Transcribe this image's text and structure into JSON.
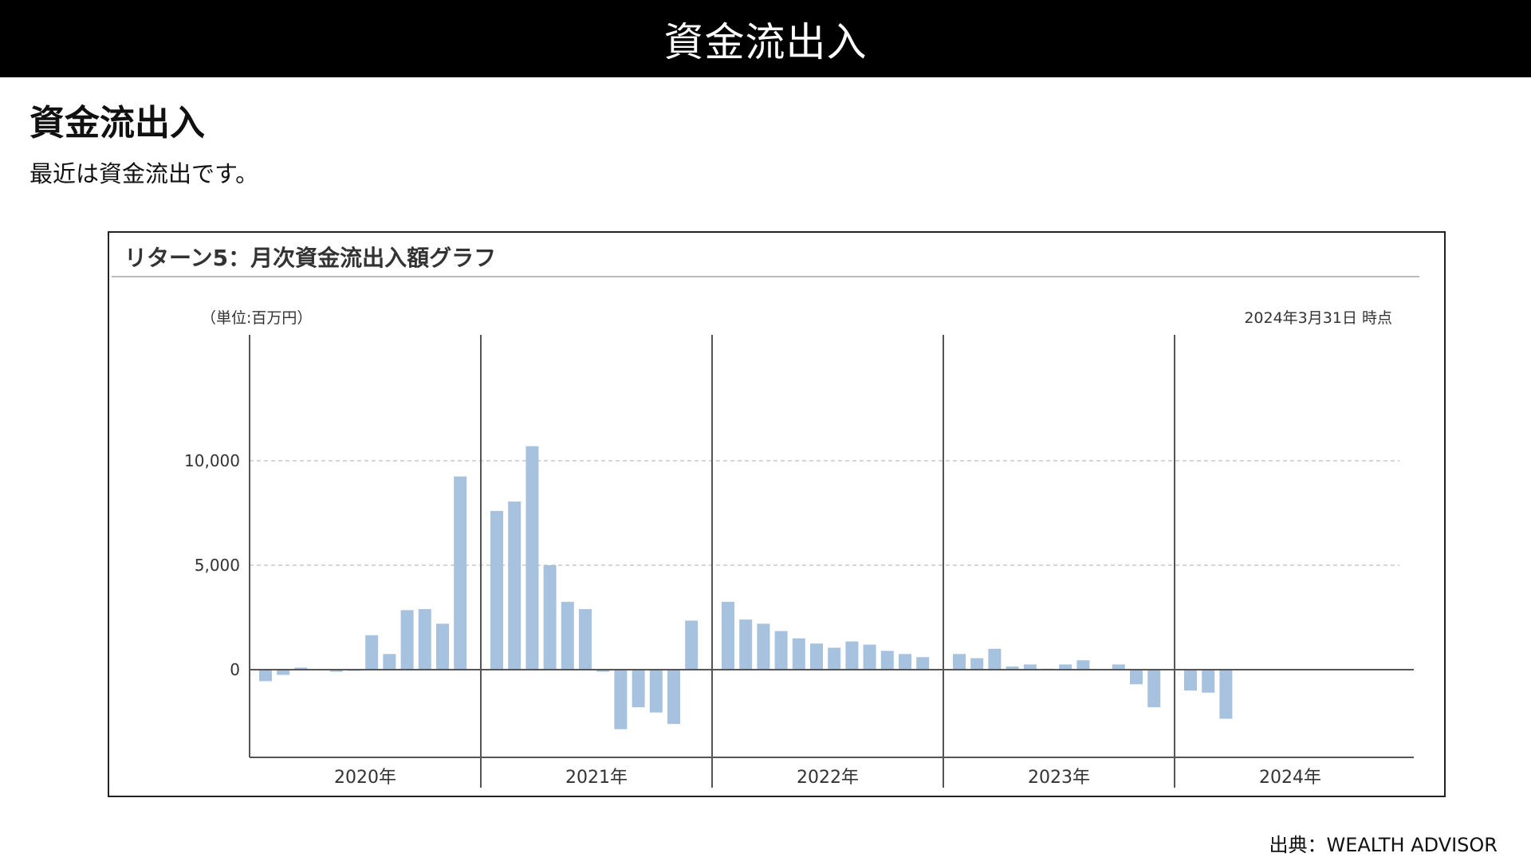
{
  "header": {
    "title": "資金流出入"
  },
  "section": {
    "heading": "資金流出入",
    "description": "最近は資金流出です。"
  },
  "chart_panel": {
    "title": "リターン5：月次資金流出入額グラフ",
    "unit": "（単位:百万円）",
    "as_of": "2024年3月31日 時点"
  },
  "footer": {
    "source": "出典：WEALTH ADVISOR"
  },
  "colors": {
    "bar": "#a7c2de",
    "axis": "#555555",
    "grid": "#c8c8c8",
    "header_bg": "#000000"
  },
  "chart_data": {
    "type": "bar",
    "title": "リターン5：月次資金流出入額グラフ",
    "ylabel": "（単位:百万円）",
    "xlabel": "",
    "ylim": [
      -3100,
      11700
    ],
    "yticks": [
      0,
      5000,
      10000
    ],
    "ytick_labels": [
      "0",
      "5,000",
      "10,000"
    ],
    "grid": true,
    "year_groups": [
      {
        "label": "2020年",
        "values": [
          -550,
          -250,
          100,
          null,
          -100,
          -50,
          1650,
          750,
          2850,
          2900,
          2200,
          9250
        ]
      },
      {
        "label": "2021年",
        "values": [
          7600,
          8050,
          10700,
          5000,
          3250,
          2900,
          -100,
          -2850,
          -1800,
          -2050,
          -2600,
          2350
        ]
      },
      {
        "label": "2022年",
        "values": [
          3250,
          2400,
          2200,
          1850,
          1500,
          1250,
          1050,
          1350,
          1200,
          900,
          750,
          600
        ]
      },
      {
        "label": "2023年",
        "values": [
          750,
          550,
          1000,
          150,
          250,
          50,
          250,
          450,
          null,
          250,
          -700,
          -1800
        ]
      },
      {
        "label": "2024年",
        "values": [
          -1000,
          -1100,
          -2350
        ]
      }
    ]
  }
}
